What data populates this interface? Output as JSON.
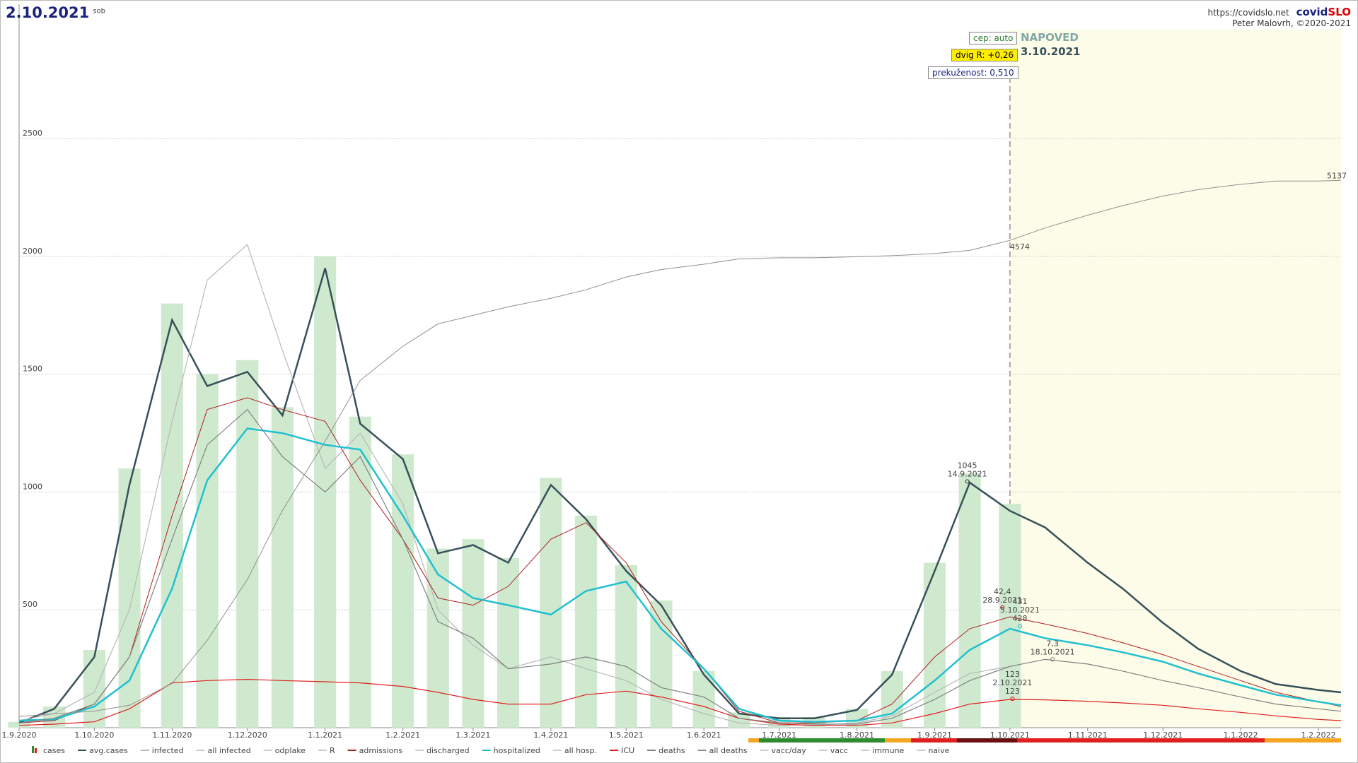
{
  "header": {
    "date": "2.10.2021",
    "weekday": "sob",
    "url": "https://covidslo.net",
    "brand_a": "covid",
    "brand_b": "SLO",
    "author": "Peter Malovrh, ©2020-2021"
  },
  "boxes": {
    "cep": "cep: auto",
    "dvig": "dvig R: +0,26",
    "prekuzenost": "prekuženost: 0,510",
    "napoved": "NAPOVED",
    "napoved_date": "3.10.2021"
  },
  "chart_data": {
    "type": "line",
    "x": [
      "1.9.2020",
      "15.9.2020",
      "1.10.2020",
      "15.10.2020",
      "1.11.2020",
      "15.11.2020",
      "1.12.2020",
      "15.12.2020",
      "1.1.2021",
      "15.1.2021",
      "1.2.2021",
      "15.2.2021",
      "1.3.2021",
      "15.3.2021",
      "1.4.2021",
      "15.4.2021",
      "1.5.2021",
      "15.5.2021",
      "1.6.2021",
      "15.6.2021",
      "1.7.2021",
      "15.7.2021",
      "1.8.2021",
      "15.8.2021",
      "1.9.2021",
      "15.9.2021",
      "1.10.2021",
      "15.10.2021",
      "1.11.2021",
      "15.11.2021",
      "1.12.2021",
      "15.12.2021",
      "1.1.2022",
      "15.1.2022",
      "1.2.2022",
      "10.2.2022"
    ],
    "xlim": [
      "1.9.2020",
      "10.2.2022"
    ],
    "xticks": [
      "1.9.2020",
      "1.10.2020",
      "1.11.2020",
      "1.12.2020",
      "1.1.2021",
      "1.2.2021",
      "1.3.2021",
      "1.4.2021",
      "1.5.2021",
      "1.6.2021",
      "1.7.2021",
      "1.8.2021",
      "1.9.2021",
      "1.10.2021",
      "1.11.2021",
      "1.12.2021",
      "1.1.2022",
      "1.2.2022"
    ],
    "ylim": [
      0,
      3070
    ],
    "yticks": [
      0,
      500,
      1000,
      1500,
      2000,
      2500
    ],
    "y2lim": [
      0,
      6790
    ],
    "grid": true,
    "forecast_from": "1.10.2021",
    "series": [
      {
        "name": "cases",
        "kind": "bar",
        "color": "#cfe9cf",
        "values": [
          25,
          90,
          330,
          1100,
          1800,
          1500,
          1560,
          1360,
          2000,
          1320,
          1160,
          760,
          800,
          720,
          1060,
          900,
          690,
          540,
          240,
          65,
          45,
          45,
          80,
          240,
          700,
          1080,
          950,
          null,
          null,
          null,
          null,
          null,
          null,
          null,
          null,
          null
        ]
      },
      {
        "name": "avg.cases",
        "kind": "line",
        "color": "#37505a",
        "width": 2.5,
        "values": [
          20,
          80,
          300,
          1030,
          1730,
          1450,
          1510,
          1325,
          1950,
          1290,
          1140,
          740,
          775,
          700,
          1030,
          885,
          665,
          520,
          225,
          60,
          40,
          40,
          75,
          225,
          665,
          1040,
          920,
          850,
          700,
          590,
          445,
          335,
          240,
          185,
          160,
          150
        ]
      },
      {
        "name": "infected",
        "kind": "line",
        "color": "#b8b8b8",
        "width": 1.2,
        "values": [
          30,
          60,
          150,
          500,
          1300,
          1900,
          2050,
          1600,
          1100,
          1250,
          950,
          500,
          350,
          250,
          300,
          250,
          200,
          120,
          60,
          20,
          10,
          10,
          20,
          50,
          150,
          230,
          260,
          null,
          null,
          null,
          null,
          null,
          null,
          null,
          null,
          null
        ]
      },
      {
        "name": "all infected",
        "color": "#d8d8d8"
      },
      {
        "name": "odplake",
        "color": "#d8d8d8"
      },
      {
        "name": "R",
        "color": "#d8d8d8"
      },
      {
        "name": "admissions",
        "kind": "line",
        "color": "#b02020",
        "width": 1,
        "values": [
          20,
          30,
          100,
          300,
          900,
          1350,
          1400,
          1350,
          1300,
          1050,
          800,
          550,
          520,
          600,
          800,
          870,
          700,
          450,
          250,
          70,
          20,
          20,
          30,
          100,
          300,
          420,
          470,
          440,
          400,
          360,
          310,
          260,
          200,
          150,
          110,
          90
        ]
      },
      {
        "name": "discharged",
        "color": "#d8d8d8"
      },
      {
        "name": "hospitalized",
        "kind": "line",
        "color": "#20c0d0",
        "width": 2.5,
        "values": [
          30,
          35,
          90,
          200,
          590,
          1050,
          1270,
          1250,
          1200,
          1180,
          900,
          650,
          550,
          520,
          480,
          580,
          620,
          420,
          250,
          80,
          30,
          25,
          30,
          60,
          200,
          330,
          420,
          380,
          350,
          320,
          280,
          230,
          180,
          140,
          110,
          95
        ]
      },
      {
        "name": "all hosp.",
        "color": "#d8d8d8"
      },
      {
        "name": "ICU",
        "kind": "line",
        "color": "#e02020",
        "width": 1.2,
        "values": [
          10,
          15,
          25,
          80,
          190,
          200,
          205,
          200,
          195,
          190,
          175,
          150,
          120,
          100,
          100,
          140,
          155,
          130,
          90,
          40,
          15,
          10,
          10,
          20,
          60,
          100,
          120,
          118,
          112,
          105,
          95,
          80,
          65,
          50,
          35,
          30
        ]
      },
      {
        "name": "deaths",
        "kind": "line",
        "color": "#808080",
        "width": 1.2,
        "values": [
          20,
          40,
          100,
          300,
          800,
          1200,
          1350,
          1150,
          1000,
          1150,
          800,
          450,
          380,
          250,
          270,
          300,
          260,
          170,
          130,
          40,
          20,
          15,
          15,
          40,
          120,
          200,
          260,
          290,
          270,
          240,
          200,
          170,
          130,
          100,
          80,
          70
        ]
      },
      {
        "name": "all deaths",
        "kind": "line",
        "axis": "y2",
        "color": "#909090",
        "width": 1,
        "values": [
          105,
          130,
          155,
          210,
          415,
          820,
          1390,
          2040,
          2690,
          3260,
          3580,
          3790,
          3870,
          3950,
          4030,
          4110,
          4230,
          4300,
          4350,
          4400,
          4410,
          4410,
          4420,
          4430,
          4450,
          4480,
          4574,
          4690,
          4810,
          4900,
          4990,
          5050,
          5100,
          5130,
          5130,
          5137
        ]
      },
      {
        "name": "vacc/day",
        "color": "#d8d8d8"
      },
      {
        "name": "vacc",
        "color": "#d8d8d8"
      },
      {
        "name": "immune",
        "color": "#d8d8d8"
      },
      {
        "name": "naive",
        "color": "#d8d8d8"
      }
    ],
    "annotations": [
      {
        "x": "14.9.2021",
        "y": 1045,
        "color": "#222222",
        "lines": [
          "1045",
          "14.9.2021"
        ]
      },
      {
        "x": "28.9.2021",
        "y": 510,
        "color": "#c00000",
        "lines": [
          "42,4",
          "28.9.2021"
        ]
      },
      {
        "x": "5.10.2021",
        "y": 431,
        "color": "#20b0c0",
        "lines": [
          "431",
          "5.10.2021",
          "428"
        ]
      },
      {
        "x": "18.10.2021",
        "y": 290,
        "color": "#777777",
        "lines": [
          "7,3",
          "18.10.2021"
        ]
      },
      {
        "x": "2.10.2021",
        "y": 123,
        "color": "#e00000",
        "lines": [
          "123",
          "2.10.2021",
          "123"
        ]
      }
    ]
  }
}
